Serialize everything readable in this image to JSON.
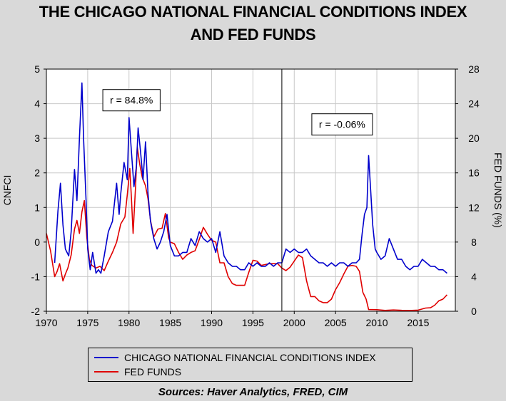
{
  "title_line1": "THE CHICAGO NATIONAL FINANCIAL CONDITIONS INDEX",
  "title_line2": "AND FED FUNDS",
  "source": "Sources:  Haver Analytics, FRED, CIM",
  "chart_data": {
    "type": "line",
    "title": "THE CHICAGO NATIONAL FINANCIAL CONDITIONS INDEX AND FED FUNDS",
    "xlabel": "",
    "ylabel_left": "CNFCI",
    "ylabel_right": "FED FUNDS (%)",
    "xlim": [
      1970,
      2019.5
    ],
    "ylim_left": [
      -2,
      5
    ],
    "ylim_right": [
      0,
      28
    ],
    "xticks": [
      1970,
      1975,
      1980,
      1985,
      1990,
      1995,
      2000,
      2005,
      2010,
      2015
    ],
    "yticks_left": [
      -2,
      -1,
      0,
      1,
      2,
      3,
      4,
      5
    ],
    "yticks_right": [
      0,
      4,
      8,
      12,
      16,
      20,
      24,
      28
    ],
    "grid": true,
    "legend_position": "bottom",
    "vertical_line_x": 1998.5,
    "annotations": [
      {
        "text": "r = 84.8%",
        "x": 1980.3,
        "y_left": 4.1
      },
      {
        "text": "r = -0.06%",
        "x": 2005.8,
        "y_left": 3.4
      }
    ],
    "series": [
      {
        "name": "CHICAGO NATIONAL FINANCIAL CONDITIONS INDEX",
        "color": "#0000cc",
        "axis": "left",
        "x": [
          1971.0,
          1971.4,
          1971.7,
          1972.0,
          1972.3,
          1972.7,
          1973.0,
          1973.4,
          1973.7,
          1974.0,
          1974.3,
          1974.5,
          1974.8,
          1975.0,
          1975.3,
          1975.6,
          1976.0,
          1976.3,
          1976.6,
          1977.0,
          1977.5,
          1978.0,
          1978.5,
          1978.8,
          1979.0,
          1979.4,
          1979.8,
          1980.0,
          1980.3,
          1980.6,
          1980.9,
          1981.1,
          1981.4,
          1981.7,
          1982.0,
          1982.3,
          1982.6,
          1983.0,
          1983.4,
          1983.8,
          1984.2,
          1984.6,
          1985.0,
          1985.5,
          1986.0,
          1986.5,
          1987.0,
          1987.5,
          1988.0,
          1988.5,
          1989.0,
          1989.5,
          1990.0,
          1990.5,
          1991.0,
          1991.5,
          1992.0,
          1992.5,
          1993.0,
          1993.5,
          1994.0,
          1994.5,
          1995.0,
          1995.5,
          1996.0,
          1996.5,
          1997.0,
          1997.5,
          1998.0,
          1998.5,
          1999.0,
          1999.5,
          2000.0,
          2000.5,
          2001.0,
          2001.5,
          2002.0,
          2002.5,
          2003.0,
          2003.5,
          2004.0,
          2004.5,
          2005.0,
          2005.5,
          2006.0,
          2006.5,
          2007.0,
          2007.5,
          2007.9,
          2008.2,
          2008.5,
          2008.8,
          2009.0,
          2009.2,
          2009.5,
          2009.8,
          2010.0,
          2010.5,
          2011.0,
          2011.5,
          2012.0,
          2012.5,
          2013.0,
          2013.5,
          2014.0,
          2014.5,
          2015.0,
          2015.5,
          2016.0,
          2016.5,
          2017.0,
          2017.5,
          2018.0,
          2018.5
        ],
        "y": [
          -0.6,
          0.9,
          1.7,
          0.5,
          -0.2,
          -0.4,
          0.3,
          2.1,
          1.2,
          3.0,
          4.6,
          3.0,
          1.2,
          -0.2,
          -0.8,
          -0.3,
          -0.9,
          -0.8,
          -0.9,
          -0.4,
          0.3,
          0.6,
          1.7,
          0.8,
          1.4,
          2.3,
          1.8,
          3.6,
          2.6,
          1.6,
          2.2,
          3.3,
          2.6,
          1.8,
          2.9,
          1.4,
          0.6,
          0.1,
          -0.2,
          0.0,
          0.3,
          0.8,
          -0.1,
          -0.4,
          -0.4,
          -0.3,
          -0.3,
          0.1,
          -0.1,
          0.3,
          0.1,
          0.0,
          0.1,
          -0.3,
          0.3,
          -0.4,
          -0.6,
          -0.7,
          -0.7,
          -0.8,
          -0.8,
          -0.6,
          -0.7,
          -0.6,
          -0.7,
          -0.7,
          -0.6,
          -0.7,
          -0.6,
          -0.6,
          -0.2,
          -0.3,
          -0.2,
          -0.3,
          -0.3,
          -0.2,
          -0.4,
          -0.5,
          -0.6,
          -0.6,
          -0.7,
          -0.6,
          -0.7,
          -0.6,
          -0.6,
          -0.7,
          -0.6,
          -0.6,
          -0.5,
          0.2,
          0.8,
          1.0,
          2.5,
          1.7,
          0.5,
          -0.2,
          -0.3,
          -0.5,
          -0.4,
          0.1,
          -0.2,
          -0.5,
          -0.5,
          -0.7,
          -0.8,
          -0.7,
          -0.7,
          -0.5,
          -0.6,
          -0.7,
          -0.7,
          -0.8,
          -0.8,
          -0.9
        ]
      },
      {
        "name": "FED FUNDS",
        "color": "#e00000",
        "axis": "right",
        "x": [
          1970.0,
          1970.5,
          1971.0,
          1971.3,
          1971.6,
          1972.0,
          1972.3,
          1972.6,
          1973.0,
          1973.4,
          1973.7,
          1974.0,
          1974.3,
          1974.6,
          1974.9,
          1975.2,
          1975.5,
          1976.0,
          1976.5,
          1977.0,
          1977.5,
          1978.0,
          1978.5,
          1979.0,
          1979.5,
          1979.8,
          1980.1,
          1980.3,
          1980.5,
          1980.8,
          1981.0,
          1981.3,
          1981.6,
          1982.0,
          1982.3,
          1982.6,
          1983.0,
          1983.5,
          1984.0,
          1984.4,
          1984.8,
          1985.0,
          1985.5,
          1986.0,
          1986.5,
          1987.0,
          1987.5,
          1988.0,
          1988.5,
          1989.0,
          1989.5,
          1990.0,
          1990.5,
          1991.0,
          1991.5,
          1992.0,
          1992.5,
          1993.0,
          1993.5,
          1994.0,
          1994.5,
          1995.0,
          1995.5,
          1996.0,
          1997.0,
          1998.0,
          1998.5,
          1999.0,
          1999.5,
          2000.0,
          2000.5,
          2001.0,
          2001.5,
          2002.0,
          2002.5,
          2003.0,
          2003.5,
          2004.0,
          2004.5,
          2005.0,
          2005.5,
          2006.0,
          2006.5,
          2007.0,
          2007.5,
          2007.9,
          2008.3,
          2008.7,
          2009.0,
          2010.0,
          2011.0,
          2012.0,
          2013.0,
          2014.0,
          2015.0,
          2015.9,
          2016.5,
          2017.0,
          2017.5,
          2018.0,
          2018.5
        ],
        "y": [
          9.0,
          7.0,
          4.0,
          4.6,
          5.5,
          3.5,
          4.3,
          5.0,
          6.5,
          9.5,
          10.5,
          9.0,
          11.5,
          12.8,
          8.5,
          6.0,
          5.3,
          5.0,
          5.2,
          4.7,
          5.8,
          6.8,
          8.0,
          10.1,
          10.9,
          13.5,
          16.5,
          13.0,
          9.0,
          14.5,
          19.0,
          17.0,
          15.5,
          14.5,
          13.0,
          10.5,
          8.6,
          9.5,
          9.6,
          11.3,
          8.5,
          8.0,
          7.8,
          6.8,
          6.0,
          6.5,
          6.8,
          7.0,
          8.3,
          9.7,
          8.9,
          8.2,
          8.0,
          5.6,
          5.6,
          4.0,
          3.2,
          3.0,
          3.0,
          3.0,
          4.5,
          5.9,
          5.8,
          5.3,
          5.5,
          5.5,
          5.0,
          4.7,
          5.1,
          5.8,
          6.5,
          6.2,
          3.5,
          1.7,
          1.7,
          1.2,
          1.0,
          1.0,
          1.4,
          2.5,
          3.3,
          4.3,
          5.2,
          5.3,
          5.2,
          4.6,
          2.2,
          1.4,
          0.2,
          0.18,
          0.1,
          0.15,
          0.11,
          0.09,
          0.13,
          0.37,
          0.4,
          0.7,
          1.2,
          1.4,
          1.9
        ]
      }
    ]
  },
  "legend": {
    "items": [
      {
        "label": "CHICAGO NATIONAL FINANCIAL CONDITIONS INDEX",
        "color": "#0000cc"
      },
      {
        "label": "FED FUNDS",
        "color": "#e00000"
      }
    ]
  }
}
